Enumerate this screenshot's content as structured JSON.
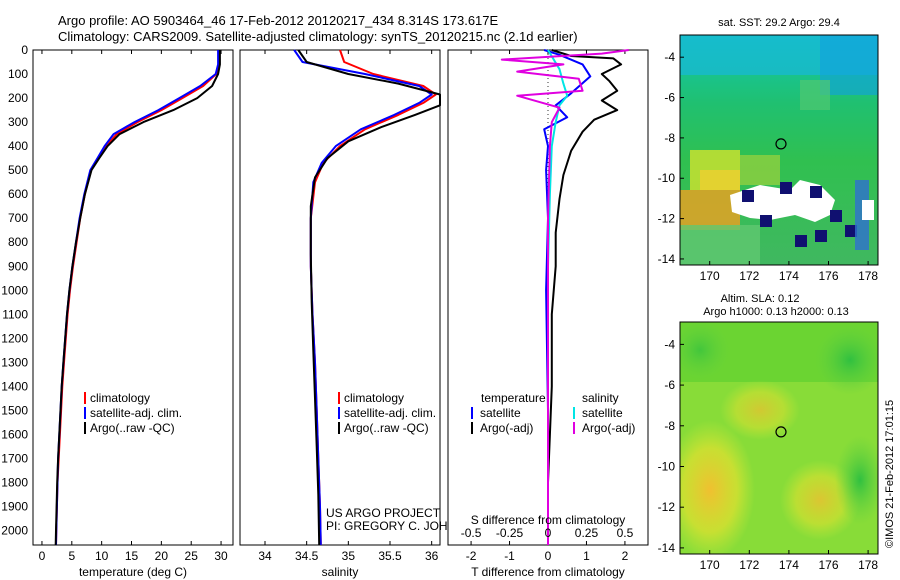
{
  "titles": {
    "line1": "Argo profile: AO 5903464_46 17-Feb-2012 20120217_434 8.314S 173.617E",
    "line2": "Climatology: CARS2009. Satellite-adjusted climatology: synTS_20120215.nc (2.1d earlier)"
  },
  "colors": {
    "climatology": "#ff0000",
    "satellite": "#0000ff",
    "argo": "#000000",
    "sat_salinity": "#00e5e5",
    "argo_salinity": "#e000e0"
  },
  "depth_axis": {
    "ticks": [
      0,
      100,
      200,
      300,
      400,
      500,
      600,
      700,
      800,
      900,
      1000,
      1100,
      1200,
      1300,
      1400,
      1500,
      1600,
      1700,
      1800,
      1900,
      2000
    ],
    "range": [
      0,
      2060
    ]
  },
  "chart_data": [
    {
      "type": "line",
      "id": "temperature",
      "xlabel": "temperature (deg C)",
      "xlim": [
        -1.5,
        32
      ],
      "xticks": [
        0,
        5,
        10,
        15,
        20,
        25,
        30
      ],
      "ylim": [
        0,
        2060
      ],
      "legend": [
        "climatology",
        "satellite-adj. clim.",
        "Argo(..raw -QC)"
      ],
      "series": [
        {
          "name": "climatology",
          "color": "#ff0000",
          "points": [
            [
              29.6,
              0
            ],
            [
              29.6,
              60
            ],
            [
              29.2,
              100
            ],
            [
              27,
              150
            ],
            [
              23.5,
              200
            ],
            [
              20,
              250
            ],
            [
              16,
              300
            ],
            [
              12.5,
              350
            ],
            [
              10.8,
              400
            ],
            [
              9.5,
              450
            ],
            [
              8.2,
              500
            ],
            [
              7.2,
              600
            ],
            [
              6.4,
              700
            ],
            [
              5.8,
              800
            ],
            [
              5.2,
              900
            ],
            [
              4.7,
              1000
            ],
            [
              4.3,
              1100
            ],
            [
              4,
              1200
            ],
            [
              3.7,
              1300
            ],
            [
              3.4,
              1400
            ],
            [
              3.2,
              1500
            ],
            [
              3,
              1600
            ],
            [
              2.8,
              1700
            ],
            [
              2.6,
              1800
            ],
            [
              2.5,
              1900
            ],
            [
              2.4,
              2000
            ],
            [
              2.35,
              2060
            ]
          ]
        },
        {
          "name": "satellite-adj. clim.",
          "color": "#0000ff",
          "points": [
            [
              29.5,
              0
            ],
            [
              29.5,
              60
            ],
            [
              29.1,
              100
            ],
            [
              26.5,
              150
            ],
            [
              23,
              200
            ],
            [
              19.5,
              250
            ],
            [
              15.5,
              300
            ],
            [
              12,
              350
            ],
            [
              10.5,
              400
            ],
            [
              9.3,
              450
            ],
            [
              8.1,
              500
            ],
            [
              7.1,
              600
            ],
            [
              6.3,
              700
            ],
            [
              5.7,
              800
            ],
            [
              5.1,
              900
            ],
            [
              4.6,
              1000
            ],
            [
              4.2,
              1100
            ],
            [
              3.9,
              1200
            ],
            [
              3.6,
              1300
            ],
            [
              3.3,
              1400
            ],
            [
              3.1,
              1500
            ],
            [
              2.9,
              1600
            ],
            [
              2.7,
              1700
            ],
            [
              2.6,
              1800
            ],
            [
              2.5,
              1900
            ],
            [
              2.4,
              2000
            ],
            [
              2.35,
              2060
            ]
          ]
        },
        {
          "name": "Argo(..raw -QC)",
          "color": "#000000",
          "points": [
            [
              29.8,
              0
            ],
            [
              29.8,
              60
            ],
            [
              29.5,
              100
            ],
            [
              28.5,
              150
            ],
            [
              26,
              200
            ],
            [
              22,
              250
            ],
            [
              17,
              300
            ],
            [
              13,
              350
            ],
            [
              11,
              400
            ],
            [
              9.6,
              450
            ],
            [
              8.3,
              500
            ],
            [
              7.2,
              600
            ],
            [
              6.4,
              700
            ],
            [
              5.7,
              800
            ],
            [
              5.1,
              900
            ],
            [
              4.6,
              1000
            ],
            [
              4.2,
              1100
            ],
            [
              3.9,
              1200
            ],
            [
              3.6,
              1300
            ],
            [
              3.3,
              1400
            ],
            [
              3.1,
              1500
            ],
            [
              2.9,
              1600
            ],
            [
              2.7,
              1700
            ],
            [
              2.55,
              1800
            ],
            [
              2.45,
              1900
            ],
            [
              2.35,
              2000
            ],
            [
              2.3,
              2060
            ]
          ]
        }
      ]
    },
    {
      "type": "line",
      "id": "salinity",
      "xlabel": "salinity",
      "xlim": [
        33.7,
        36.1
      ],
      "xticks": [
        34,
        34.5,
        35,
        35.5,
        36
      ],
      "ylim": [
        0,
        2060
      ],
      "legend": [
        "climatology",
        "satellite-adj. clim.",
        "Argo(..raw -QC)"
      ],
      "annotation": [
        "US ARGO PROJECT",
        "PI: GREGORY C. JOHNSON"
      ],
      "series": [
        {
          "name": "climatology",
          "color": "#ff0000",
          "points": [
            [
              34.9,
              0
            ],
            [
              34.95,
              50
            ],
            [
              35.3,
              100
            ],
            [
              35.9,
              150
            ],
            [
              36.05,
              185
            ],
            [
              35.9,
              220
            ],
            [
              35.6,
              270
            ],
            [
              35.2,
              330
            ],
            [
              34.9,
              400
            ],
            [
              34.7,
              470
            ],
            [
              34.6,
              550
            ],
            [
              34.55,
              700
            ],
            [
              34.55,
              900
            ],
            [
              34.57,
              1100
            ],
            [
              34.6,
              1300
            ],
            [
              34.62,
              1500
            ],
            [
              34.64,
              1700
            ],
            [
              34.66,
              1900
            ],
            [
              34.67,
              2060
            ]
          ]
        },
        {
          "name": "satellite-adj. clim.",
          "color": "#0000ff",
          "points": [
            [
              34.35,
              0
            ],
            [
              34.45,
              50
            ],
            [
              35.2,
              100
            ],
            [
              35.85,
              150
            ],
            [
              36,
              185
            ],
            [
              35.85,
              220
            ],
            [
              35.55,
              270
            ],
            [
              35.15,
              330
            ],
            [
              34.85,
              400
            ],
            [
              34.68,
              470
            ],
            [
              34.58,
              550
            ],
            [
              34.55,
              700
            ],
            [
              34.55,
              900
            ],
            [
              34.57,
              1100
            ],
            [
              34.6,
              1300
            ],
            [
              34.62,
              1500
            ],
            [
              34.64,
              1700
            ],
            [
              34.66,
              1900
            ],
            [
              34.67,
              2060
            ]
          ]
        },
        {
          "name": "Argo(..raw -QC)",
          "color": "#000000",
          "points": [
            [
              34.4,
              0
            ],
            [
              34.5,
              50
            ],
            [
              35.0,
              100
            ],
            [
              35.6,
              140
            ],
            [
              36.1,
              185
            ],
            [
              36.1,
              230
            ],
            [
              35.8,
              270
            ],
            [
              35.4,
              320
            ],
            [
              35.0,
              380
            ],
            [
              34.75,
              450
            ],
            [
              34.6,
              530
            ],
            [
              34.55,
              650
            ],
            [
              34.55,
              850
            ],
            [
              34.56,
              1050
            ],
            [
              34.58,
              1250
            ],
            [
              34.6,
              1450
            ],
            [
              34.62,
              1650
            ],
            [
              34.64,
              1850
            ],
            [
              34.65,
              2060
            ]
          ]
        }
      ]
    },
    {
      "type": "line",
      "id": "difference",
      "xlabel": "T difference from climatology",
      "xlabel_top": "S difference from climatology",
      "xlim": [
        -2.6,
        2.6
      ],
      "xticks": [
        -2,
        -1,
        0,
        1,
        2
      ],
      "xticks_top": [
        "-0.5",
        "-0.25",
        "0",
        "0.25",
        "0.5"
      ],
      "ylim": [
        0,
        2060
      ],
      "legend": {
        "temperature": [
          "satellite",
          "Argo(-adj)"
        ],
        "salinity": [
          "satellite",
          "Argo(-adj)"
        ]
      },
      "legend_titles": [
        "temperature",
        "salinity"
      ],
      "series": [
        {
          "name": "temperature satellite",
          "color": "#0000ff",
          "points": [
            [
              -0.1,
              0
            ],
            [
              0.3,
              20
            ],
            [
              0.9,
              60
            ],
            [
              1.1,
              110
            ],
            [
              0.6,
              180
            ],
            [
              0.2,
              230
            ],
            [
              0.5,
              280
            ],
            [
              -0.1,
              330
            ],
            [
              0,
              400
            ],
            [
              -0.05,
              500
            ],
            [
              0,
              700
            ],
            [
              -0.05,
              1000
            ],
            [
              0,
              1500
            ],
            [
              0,
              2060
            ]
          ]
        },
        {
          "name": "temperature Argo(-adj)",
          "color": "#000000",
          "points": [
            [
              0.1,
              0
            ],
            [
              0.6,
              25
            ],
            [
              1.7,
              35
            ],
            [
              1.9,
              60
            ],
            [
              1.4,
              100
            ],
            [
              1.6,
              130
            ],
            [
              1.8,
              170
            ],
            [
              1.4,
              210
            ],
            [
              1.8,
              250
            ],
            [
              1.2,
              290
            ],
            [
              0.9,
              340
            ],
            [
              0.6,
              420
            ],
            [
              0.4,
              520
            ],
            [
              0.3,
              620
            ],
            [
              0.2,
              760
            ],
            [
              0.2,
              900
            ],
            [
              0.1,
              1100
            ],
            [
              0.1,
              1400
            ],
            [
              0,
              1800
            ],
            [
              0,
              2060
            ]
          ]
        },
        {
          "name": "salinity satellite",
          "color": "#00e5e5",
          "points": [
            [
              0,
              0
            ],
            [
              0.3,
              80
            ],
            [
              0.4,
              140
            ],
            [
              0.5,
              190
            ],
            [
              0.3,
              230
            ],
            [
              0.2,
              300
            ],
            [
              0.1,
              400
            ],
            [
              0.05,
              600
            ],
            [
              0,
              900
            ],
            [
              0,
              1400
            ],
            [
              0,
              2060
            ]
          ]
        },
        {
          "name": "salinity Argo(-adj)",
          "color": "#e000e0",
          "points": [
            [
              2.1,
              0
            ],
            [
              1.4,
              15
            ],
            [
              -1.2,
              40
            ],
            [
              0.4,
              60
            ],
            [
              -0.8,
              90
            ],
            [
              0.8,
              120
            ],
            [
              0.9,
              170
            ],
            [
              -0.8,
              190
            ],
            [
              0.3,
              240
            ],
            [
              0.1,
              300
            ],
            [
              0.05,
              400
            ],
            [
              0,
              700
            ],
            [
              0,
              1500
            ],
            [
              0,
              2060
            ]
          ]
        }
      ]
    },
    {
      "type": "heatmap",
      "id": "sst_map",
      "title": "sat. SST: 29.2  Argo: 29.4",
      "xlim": [
        168.5,
        178.5
      ],
      "ylim": [
        -14.3,
        -2.9
      ],
      "xticks": [
        170,
        172,
        174,
        176,
        178
      ],
      "yticks": [
        -4,
        -6,
        -8,
        -10,
        -12,
        -14
      ],
      "marker": {
        "lon": 173.6,
        "lat": -8.3
      }
    },
    {
      "type": "heatmap",
      "id": "sla_map",
      "title_lines": [
        "Altim. SLA: 0.12",
        "Argo h1000: 0.13 h2000: 0.13"
      ],
      "xlim": [
        168.5,
        178.5
      ],
      "ylim": [
        -14.3,
        -2.9
      ],
      "xticks": [
        170,
        172,
        174,
        176,
        178
      ],
      "yticks": [
        -4,
        -6,
        -8,
        -10,
        -12,
        -14
      ],
      "marker": {
        "lon": 173.6,
        "lat": -8.3
      }
    }
  ],
  "credit": "©IMOS 21-Feb-2012 17:01:15"
}
